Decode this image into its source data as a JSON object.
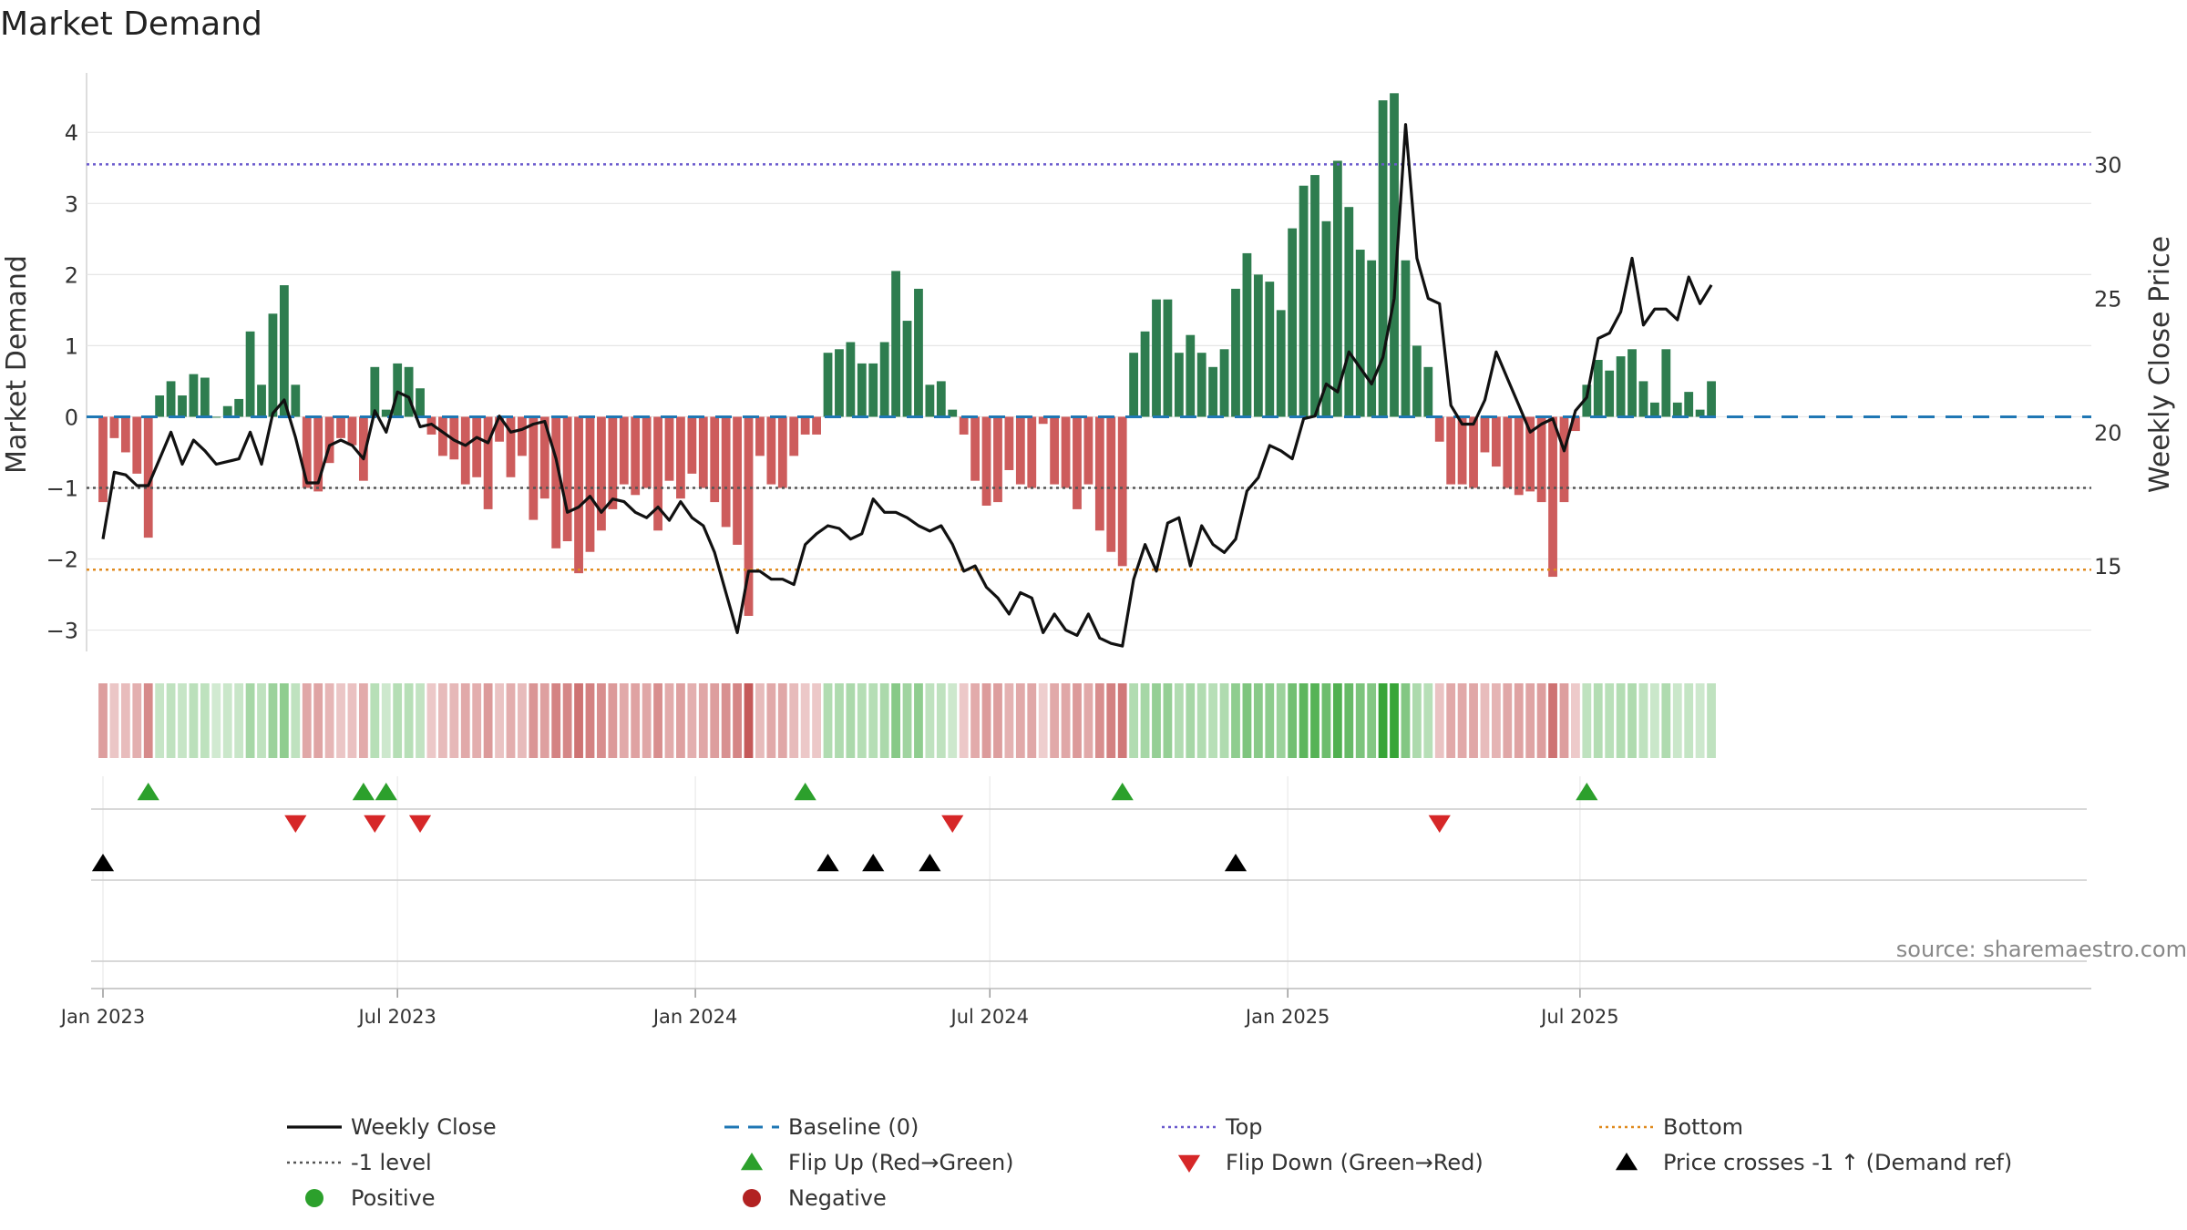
{
  "chart_data": {
    "type": "bar+line",
    "title": "Market Demand",
    "ylabel_left": "Market Demand",
    "ylabel_right": "Weekly Close Price",
    "ylim_left": [
      -3.3,
      4.9
    ],
    "ylim_right": [
      11.8,
      33.6
    ],
    "yticks_left": [
      {
        "v": 4,
        "label": "4"
      },
      {
        "v": 3,
        "label": "3"
      },
      {
        "v": 2,
        "label": "2"
      },
      {
        "v": 1,
        "label": "1"
      },
      {
        "v": 0,
        "label": "0"
      },
      {
        "v": -1,
        "label": "−1"
      },
      {
        "v": -2,
        "label": "−2"
      },
      {
        "v": -3,
        "label": "−3"
      }
    ],
    "yticks_right": [
      {
        "v": 30,
        "label": "30"
      },
      {
        "v": 25,
        "label": "25"
      },
      {
        "v": 20,
        "label": "20"
      },
      {
        "v": 15,
        "label": "15"
      }
    ],
    "x_weeks": 167,
    "x_ticks": [
      {
        "week": 0,
        "label": "Jan 2023"
      },
      {
        "week": 26,
        "label": "Jul 2023"
      },
      {
        "week": 52.3,
        "label": "Jan 2024"
      },
      {
        "week": 78.3,
        "label": "Jul 2024"
      },
      {
        "week": 104.6,
        "label": "Jan 2025"
      },
      {
        "week": 130.4,
        "label": "Jul 2025"
      }
    ],
    "reference_lines": {
      "top": 3.55,
      "bottom": -2.15,
      "minus_one": -1,
      "baseline": 0
    },
    "demand": [
      -1.2,
      -0.3,
      -0.5,
      -0.8,
      -1.7,
      0.3,
      0.5,
      0.3,
      0.6,
      0.55,
      0,
      0.15,
      0.25,
      1.2,
      0.45,
      1.45,
      1.85,
      0.45,
      -1,
      -1.05,
      -0.65,
      -0.3,
      -0.4,
      -0.9,
      0.7,
      0.1,
      0.75,
      0.7,
      0.4,
      -0.25,
      -0.55,
      -0.6,
      -0.95,
      -0.85,
      -1.3,
      -0.35,
      -0.85,
      -0.55,
      -1.45,
      -1.15,
      -1.85,
      -1.75,
      -2.2,
      -1.9,
      -1.6,
      -1.3,
      -0.95,
      -1.1,
      -1.0,
      -1.6,
      -0.9,
      -1.15,
      -0.8,
      -1.0,
      -1.2,
      -1.55,
      -1.8,
      -2.8,
      -0.55,
      -0.95,
      -1.0,
      -0.55,
      -0.25,
      -0.25,
      0.9,
      0.95,
      1.05,
      0.75,
      0.75,
      1.05,
      2.05,
      1.35,
      1.8,
      0.45,
      0.5,
      0.1,
      -0.25,
      -0.9,
      -1.25,
      -1.2,
      -0.75,
      -0.95,
      -1.0,
      -0.1,
      -0.95,
      -1.0,
      -1.3,
      -0.95,
      -1.6,
      -1.9,
      -2.1,
      0.9,
      1.2,
      1.65,
      1.65,
      0.9,
      1.15,
      0.9,
      0.7,
      0.95,
      1.8,
      2.3,
      2.0,
      1.9,
      1.5,
      2.65,
      3.25,
      3.4,
      2.75,
      3.6,
      2.95,
      2.35,
      2.2,
      4.45,
      4.55,
      2.2,
      1.0,
      0.7,
      -0.35,
      -0.95,
      -0.95,
      -1.0,
      -0.5,
      -0.7,
      -1.0,
      -1.1,
      -1.05,
      -1.2,
      -2.25,
      -1.2,
      -0.2,
      0.45,
      0.8,
      0.65,
      0.85,
      0.95,
      0.5,
      0.2,
      0.95,
      0.2,
      0.35,
      0.1,
      0.5
    ],
    "weekly_close": [
      16.0,
      18.5,
      18.4,
      18.0,
      18.0,
      19.0,
      20.0,
      18.8,
      19.7,
      19.3,
      18.8,
      18.9,
      19.0,
      20.0,
      18.8,
      20.7,
      21.2,
      19.8,
      18.1,
      18.1,
      19.5,
      19.7,
      19.5,
      19.0,
      20.8,
      20.0,
      21.5,
      21.3,
      20.2,
      20.3,
      20.0,
      19.7,
      19.5,
      19.8,
      19.6,
      20.6,
      20.0,
      20.1,
      20.3,
      20.4,
      19.0,
      17.0,
      17.2,
      17.6,
      17.0,
      17.5,
      17.4,
      17.0,
      16.8,
      17.2,
      16.7,
      17.4,
      16.8,
      16.5,
      15.5,
      14.0,
      12.5,
      14.8,
      14.8,
      14.5,
      14.5,
      14.3,
      15.8,
      16.2,
      16.5,
      16.4,
      16.0,
      16.2,
      17.5,
      17.0,
      17.0,
      16.8,
      16.5,
      16.3,
      16.5,
      15.8,
      14.8,
      15.0,
      14.2,
      13.8,
      13.2,
      14.0,
      13.8,
      12.5,
      13.2,
      12.6,
      12.4,
      13.2,
      12.3,
      12.1,
      12.0,
      14.5,
      15.8,
      14.8,
      16.6,
      16.8,
      15.0,
      16.5,
      15.8,
      15.5,
      16.0,
      17.8,
      18.3,
      19.5,
      19.3,
      19.0,
      20.5,
      20.6,
      21.8,
      21.5,
      23.0,
      22.4,
      21.8,
      22.8,
      25.0,
      31.5,
      26.5,
      25.0,
      24.8,
      21.0,
      20.3,
      20.3,
      21.2,
      23.0,
      22.0,
      21.0,
      20.0,
      20.3,
      20.5,
      19.3,
      20.8,
      21.3,
      23.5,
      23.7,
      24.5,
      26.5,
      24.0,
      24.6,
      24.6,
      24.2,
      25.8,
      24.8,
      25.5
    ],
    "flip_up_weeks": [
      4,
      23,
      25,
      62,
      90,
      131
    ],
    "flip_down_weeks": [
      17,
      24,
      28,
      75,
      118
    ],
    "price_cross_weeks": [
      0,
      64,
      68,
      73,
      100
    ],
    "legend": [
      {
        "label": "Weekly Close",
        "color": "#111111",
        "kind": "line"
      },
      {
        "label": "Baseline (0)",
        "color": "#1f77b4",
        "kind": "dash"
      },
      {
        "label": "Top",
        "color": "#6a5acd",
        "kind": "dot"
      },
      {
        "label": "Bottom",
        "color": "#e08a1e",
        "kind": "dot"
      },
      {
        "label": "-1 level",
        "color": "#555555",
        "kind": "dot"
      },
      {
        "label": "Flip Up (Red→Green)",
        "color": "#2ca02c",
        "kind": "tri-up"
      },
      {
        "label": "Flip Down (Green→Red)",
        "color": "#d62728",
        "kind": "tri-down"
      },
      {
        "label": "Price crosses -1 ↑ (Demand ref)",
        "color": "#000000",
        "kind": "tri-up"
      },
      {
        "label": "Positive",
        "color": "#2ca02c",
        "kind": "circle"
      },
      {
        "label": "Negative",
        "color": "#b22222",
        "kind": "circle"
      }
    ],
    "source": "source: sharemaestro.com"
  },
  "colors": {
    "positive_bar": "#2e7d4f",
    "negative_bar": "#cd5c5c",
    "grid": "#e6e6e6"
  }
}
